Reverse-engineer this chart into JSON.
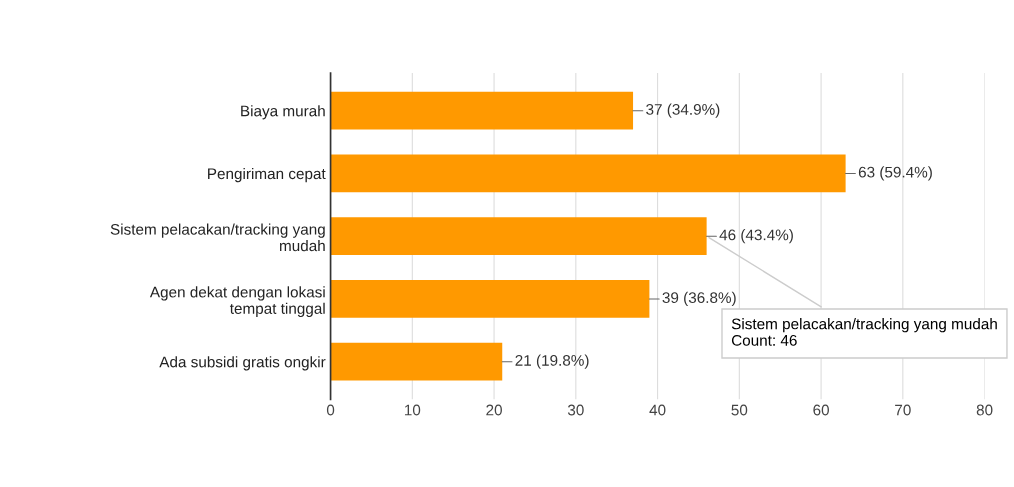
{
  "chart_data": {
    "type": "bar",
    "orientation": "horizontal",
    "categories": [
      "Biaya murah",
      "Pengiriman cepat",
      "Sistem pelacakan/tracking yang\nmudah",
      "Agen dekat dengan lokasi\ntempat tinggal",
      "Ada subsidi gratis ongkir"
    ],
    "values": [
      37,
      63,
      46,
      39,
      21
    ],
    "value_labels": [
      "37 (34.9%)",
      "63 (59.4%)",
      "46 (43.4%)",
      "39 (36.8%)",
      "21 (19.8%)"
    ],
    "color": "#ff9900",
    "xlim": [
      0,
      80
    ],
    "xticks": [
      0,
      10,
      20,
      30,
      40,
      50,
      60,
      70,
      80
    ],
    "grid": "x",
    "annotations": [
      {
        "text": "Sistem pelacakan/tracking yang mudah\nCount: 46",
        "x": 46,
        "y": "Sistem pelacakan/tracking yang\nmudah"
      }
    ]
  }
}
